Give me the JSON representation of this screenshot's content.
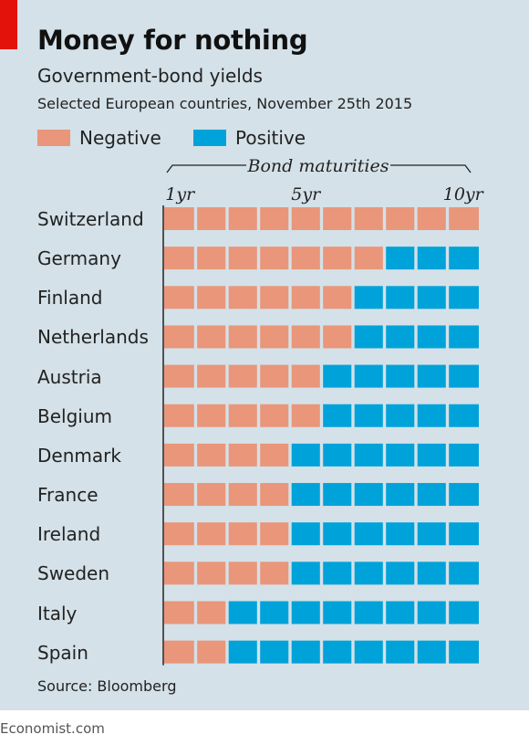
{
  "title": "Money for nothing",
  "subtitle": "Government-bond yields",
  "note": "Selected European countries, November 25th 2015",
  "source": "Source: Bloomberg",
  "footer": "Economist.com",
  "colors": {
    "negative": "#e9967a",
    "positive": "#00a3d9",
    "background": "#d4e1e8",
    "accent": "#e3120b"
  },
  "chart_data": {
    "type": "heatmap",
    "title": "Money for nothing",
    "subtitle": "Government-bond yields",
    "xlabel": "Bond maturities",
    "x": [
      1,
      2,
      3,
      4,
      5,
      6,
      7,
      8,
      9,
      10
    ],
    "x_tick_labels": [
      {
        "at": 1,
        "label": "1yr"
      },
      {
        "at": 5,
        "label": "5yr"
      },
      {
        "at": 10,
        "label": "10yr"
      }
    ],
    "legend": [
      {
        "name": "Negative",
        "color": "#e9967a"
      },
      {
        "name": "Positive",
        "color": "#00a3d9"
      }
    ],
    "rows": [
      {
        "country": "Switzerland",
        "negative_through_year": 10
      },
      {
        "country": "Germany",
        "negative_through_year": 7
      },
      {
        "country": "Finland",
        "negative_through_year": 6
      },
      {
        "country": "Netherlands",
        "negative_through_year": 6
      },
      {
        "country": "Austria",
        "negative_through_year": 5
      },
      {
        "country": "Belgium",
        "negative_through_year": 5
      },
      {
        "country": "Denmark",
        "negative_through_year": 4
      },
      {
        "country": "France",
        "negative_through_year": 4
      },
      {
        "country": "Ireland",
        "negative_through_year": 4
      },
      {
        "country": "Sweden",
        "negative_through_year": 4
      },
      {
        "country": "Italy",
        "negative_through_year": 2
      },
      {
        "country": "Spain",
        "negative_through_year": 2
      }
    ]
  }
}
